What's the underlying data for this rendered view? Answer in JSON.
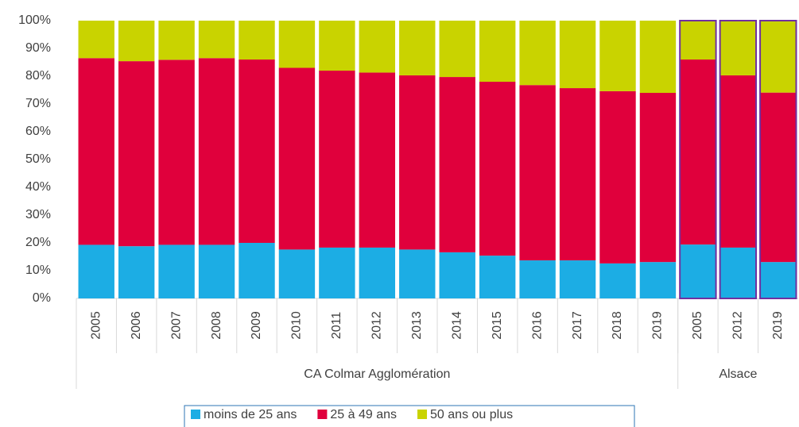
{
  "chart_data": {
    "type": "stacked_bar_100",
    "categories": [
      "2005",
      "2006",
      "2007",
      "2008",
      "2009",
      "2010",
      "2011",
      "2012",
      "2013",
      "2014",
      "2015",
      "2016",
      "2017",
      "2018",
      "2019",
      "2005",
      "2012",
      "2019"
    ],
    "groups": [
      {
        "name": "CA Colmar Agglomération",
        "size": 15
      },
      {
        "name": "Alsace",
        "size": 3,
        "outline_color": "#7030a0"
      }
    ],
    "series": [
      {
        "name": "moins de 25 ans",
        "color": "#1cade4",
        "values": [
          19.3,
          18.8,
          19.3,
          19.3,
          20,
          17.6,
          18.3,
          18.3,
          17.6,
          16.6,
          15.4,
          13.7,
          13.7,
          12.6,
          13.1,
          19.4,
          18.3,
          13.1
        ]
      },
      {
        "name": "25 à 49 ans",
        "color": "#e0003c",
        "values": [
          67.2,
          66.6,
          66.6,
          67.2,
          66,
          65.4,
          63.7,
          63,
          62.7,
          63.1,
          62.6,
          63.1,
          62,
          62,
          60.9,
          66.6,
          62,
          61
        ]
      },
      {
        "name": "50 ans ou plus",
        "color": "#c9d300",
        "values": [
          13.5,
          14.6,
          14.1,
          13.5,
          14,
          17,
          18,
          18.7,
          19.7,
          20.3,
          22,
          23.2,
          24.3,
          25.4,
          26,
          14,
          19.7,
          25.9
        ]
      }
    ],
    "ylim": [
      0,
      100
    ],
    "yticks": [
      {
        "value": 0,
        "label": "0%"
      },
      {
        "value": 10,
        "label": "10%"
      },
      {
        "value": 20,
        "label": "20%"
      },
      {
        "value": 30,
        "label": "30%"
      },
      {
        "value": 40,
        "label": "40%"
      },
      {
        "value": 50,
        "label": "50%"
      },
      {
        "value": 60,
        "label": "60%"
      },
      {
        "value": 70,
        "label": "70%"
      },
      {
        "value": 80,
        "label": "80%"
      },
      {
        "value": 90,
        "label": "90%"
      },
      {
        "value": 100,
        "label": "100%"
      }
    ],
    "grid": false,
    "legend": "bottom"
  }
}
